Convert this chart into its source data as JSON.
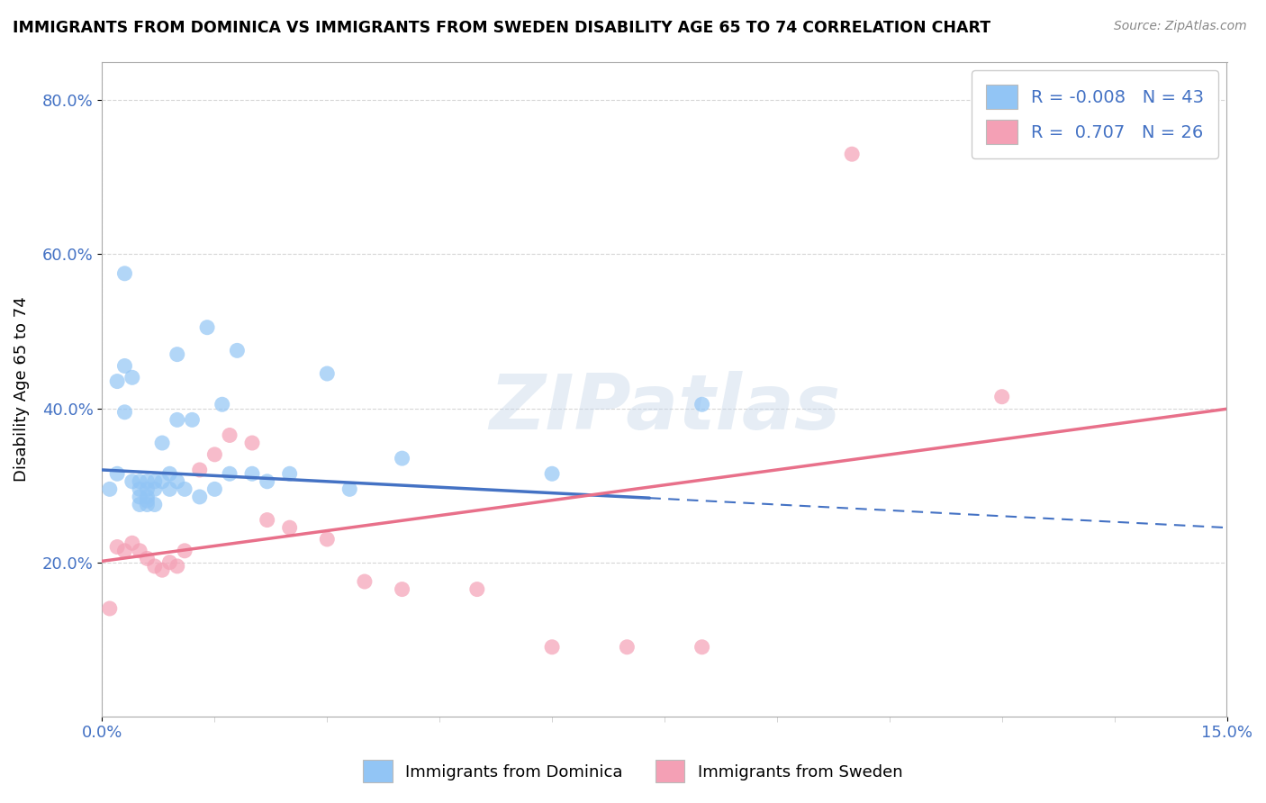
{
  "title": "IMMIGRANTS FROM DOMINICA VS IMMIGRANTS FROM SWEDEN DISABILITY AGE 65 TO 74 CORRELATION CHART",
  "source": "Source: ZipAtlas.com",
  "ylabel": "Disability Age 65 to 74",
  "xlim": [
    0.0,
    0.15
  ],
  "ylim": [
    0.0,
    0.85
  ],
  "xticks": [
    0.0,
    0.15
  ],
  "xticklabels": [
    "0.0%",
    "15.0%"
  ],
  "yticks": [
    0.2,
    0.4,
    0.6,
    0.8
  ],
  "yticklabels": [
    "20.0%",
    "40.0%",
    "60.0%",
    "80.0%"
  ],
  "dominica_color": "#92C5F5",
  "sweden_color": "#F4A0B5",
  "dominica_line_color": "#4472C4",
  "sweden_line_color": "#E8708A",
  "R_dominica": -0.008,
  "N_dominica": 43,
  "R_sweden": 0.707,
  "N_sweden": 26,
  "watermark": "ZIPatlas",
  "background_color": "#ffffff",
  "grid_color": "#cccccc",
  "dashed_line_y": 0.315,
  "blue_line_solid_end_x": 0.073,
  "dominica_dots_x": [
    0.001,
    0.002,
    0.003,
    0.003,
    0.004,
    0.005,
    0.005,
    0.005,
    0.006,
    0.006,
    0.006,
    0.006,
    0.007,
    0.007,
    0.008,
    0.008,
    0.009,
    0.009,
    0.01,
    0.01,
    0.011,
    0.012,
    0.013,
    0.014,
    0.015,
    0.016,
    0.017,
    0.018,
    0.02,
    0.022,
    0.025,
    0.03,
    0.033,
    0.04,
    0.06,
    0.08,
    0.002,
    0.003,
    0.004,
    0.005,
    0.006,
    0.007,
    0.01
  ],
  "dominica_dots_y": [
    0.295,
    0.315,
    0.575,
    0.455,
    0.44,
    0.305,
    0.295,
    0.285,
    0.305,
    0.295,
    0.285,
    0.28,
    0.305,
    0.295,
    0.355,
    0.305,
    0.315,
    0.295,
    0.385,
    0.305,
    0.295,
    0.385,
    0.285,
    0.505,
    0.295,
    0.405,
    0.315,
    0.475,
    0.315,
    0.305,
    0.315,
    0.445,
    0.295,
    0.335,
    0.315,
    0.405,
    0.435,
    0.395,
    0.305,
    0.275,
    0.275,
    0.275,
    0.47
  ],
  "sweden_dots_x": [
    0.001,
    0.002,
    0.003,
    0.004,
    0.005,
    0.006,
    0.007,
    0.008,
    0.009,
    0.01,
    0.011,
    0.013,
    0.015,
    0.017,
    0.02,
    0.022,
    0.025,
    0.03,
    0.035,
    0.04,
    0.05,
    0.06,
    0.07,
    0.08,
    0.1,
    0.12
  ],
  "sweden_dots_y": [
    0.14,
    0.22,
    0.215,
    0.225,
    0.215,
    0.205,
    0.195,
    0.19,
    0.2,
    0.195,
    0.215,
    0.32,
    0.34,
    0.365,
    0.355,
    0.255,
    0.245,
    0.23,
    0.175,
    0.165,
    0.165,
    0.09,
    0.09,
    0.09,
    0.73,
    0.415
  ]
}
